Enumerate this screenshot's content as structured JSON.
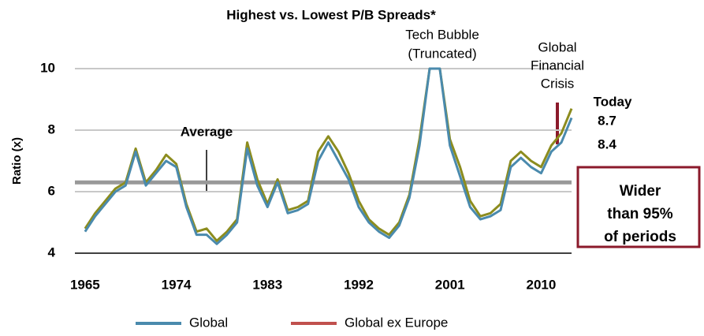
{
  "chart_data": {
    "type": "line",
    "title": "Highest vs. Lowest P/B Spreads*",
    "y_label": "Ratio (x)",
    "x": [
      1965,
      1966,
      1967,
      1968,
      1969,
      1970,
      1971,
      1972,
      1973,
      1974,
      1975,
      1976,
      1977,
      1978,
      1979,
      1980,
      1981,
      1982,
      1983,
      1984,
      1985,
      1986,
      1987,
      1988,
      1989,
      1990,
      1991,
      1992,
      1993,
      1994,
      1995,
      1996,
      1997,
      1998,
      1999,
      2000,
      2001,
      2002,
      2003,
      2004,
      2005,
      2006,
      2007,
      2008,
      2009,
      2010,
      2011,
      2012,
      2013
    ],
    "series": [
      {
        "name": "Global",
        "color": "#4a8aad",
        "values": [
          4.7,
          5.2,
          5.6,
          6.0,
          6.2,
          7.3,
          6.2,
          6.6,
          7.0,
          6.8,
          5.5,
          4.6,
          4.6,
          4.3,
          4.6,
          5.0,
          7.4,
          6.2,
          5.5,
          6.3,
          5.3,
          5.4,
          5.6,
          7.0,
          7.6,
          7.0,
          6.4,
          5.5,
          5.0,
          4.7,
          4.5,
          4.9,
          5.8,
          7.5,
          10.0,
          10.0,
          7.5,
          6.5,
          5.5,
          5.1,
          5.2,
          5.4,
          6.8,
          7.1,
          6.8,
          6.6,
          7.3,
          7.6,
          8.4
        ]
      },
      {
        "name": "Global ex Europe",
        "color": "#8c8c1e",
        "legend_color": "#c0504d",
        "values": [
          4.8,
          5.3,
          5.7,
          6.1,
          6.3,
          7.4,
          6.3,
          6.7,
          7.2,
          6.9,
          5.6,
          4.7,
          4.8,
          4.4,
          4.7,
          5.1,
          7.6,
          6.4,
          5.6,
          6.4,
          5.4,
          5.5,
          5.7,
          7.3,
          7.8,
          7.3,
          6.6,
          5.7,
          5.1,
          4.8,
          4.6,
          5.0,
          5.9,
          7.7,
          10.0,
          10.0,
          7.7,
          6.8,
          5.7,
          5.2,
          5.3,
          5.6,
          7.0,
          7.3,
          7.0,
          6.8,
          7.5,
          7.9,
          8.7
        ]
      }
    ],
    "xlim": [
      1964,
      2013
    ],
    "xticks": [
      1965,
      1974,
      1983,
      1992,
      2001,
      2010
    ],
    "ylim": [
      4,
      10
    ],
    "yticks": [
      4,
      6,
      8,
      10
    ],
    "grid": true,
    "average": 6.3,
    "average_label": "Average",
    "annotations": {
      "tech": [
        "Tech Bubble",
        "(Truncated)"
      ],
      "gfc": [
        "Global",
        "Financial",
        "Crisis"
      ],
      "today": "Today",
      "today_values": [
        "8.7",
        "8.4"
      ],
      "box": [
        "Wider",
        "than 95%",
        "of periods"
      ]
    },
    "legend": "bottom"
  }
}
